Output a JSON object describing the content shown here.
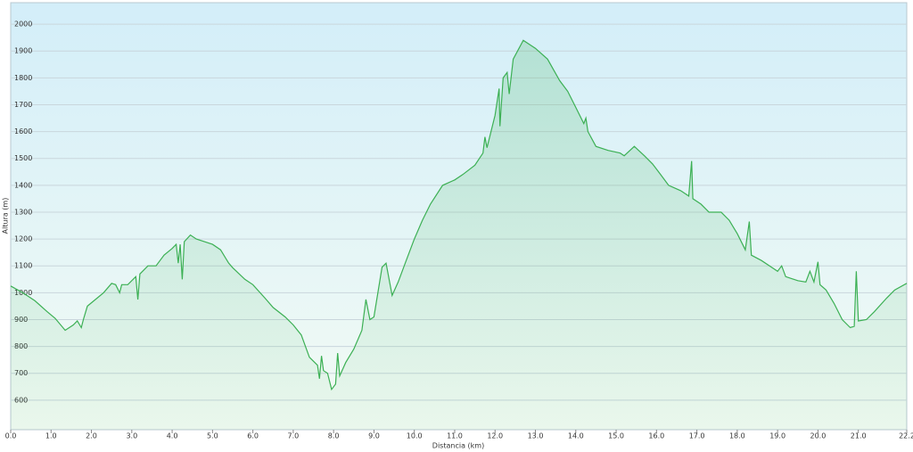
{
  "chart_data": {
    "type": "area",
    "x_label": "Distancia  (km)",
    "y_label": "Altura (m)",
    "color": "#3cb054",
    "grid": true,
    "x": [
      0,
      0.3,
      0.6,
      0.9,
      1.1,
      1.35,
      1.55,
      1.65,
      1.75,
      1.8,
      1.9,
      2.1,
      2.3,
      2.5,
      2.6,
      2.7,
      2.75,
      2.9,
      3.1,
      3.15,
      3.2,
      3.4,
      3.6,
      3.8,
      4.0,
      4.1,
      4.15,
      4.2,
      4.25,
      4.3,
      4.45,
      4.6,
      4.8,
      5.0,
      5.2,
      5.4,
      5.5,
      5.8,
      6.0,
      6.3,
      6.5,
      6.8,
      7.0,
      7.2,
      7.4,
      7.6,
      7.65,
      7.7,
      7.75,
      7.85,
      7.95,
      8.05,
      8.1,
      8.15,
      8.3,
      8.5,
      8.7,
      8.8,
      8.9,
      9.0,
      9.2,
      9.3,
      9.45,
      9.6,
      9.8,
      10.0,
      10.2,
      10.4,
      10.7,
      11.0,
      11.2,
      11.5,
      11.7,
      11.75,
      11.8,
      12.0,
      12.1,
      12.12,
      12.2,
      12.3,
      12.35,
      12.45,
      12.7,
      13.0,
      13.3,
      13.6,
      13.8,
      14.0,
      14.2,
      14.25,
      14.3,
      14.5,
      14.8,
      15.1,
      15.2,
      15.45,
      15.7,
      15.9,
      16.1,
      16.3,
      16.6,
      16.8,
      16.87,
      16.9,
      17.1,
      17.3,
      17.6,
      17.8,
      18.0,
      18.2,
      18.3,
      18.35,
      18.6,
      18.9,
      19.0,
      19.1,
      19.2,
      19.5,
      19.7,
      19.8,
      19.9,
      20.0,
      20.05,
      20.2,
      20.4,
      20.6,
      20.8,
      20.9,
      20.95,
      21.0,
      21.2,
      21.4,
      21.7,
      21.9,
      22.2
    ],
    "values": [
      1025,
      1000,
      970,
      930,
      905,
      860,
      880,
      895,
      870,
      900,
      950,
      975,
      1000,
      1035,
      1030,
      1000,
      1030,
      1030,
      1060,
      975,
      1070,
      1100,
      1100,
      1140,
      1165,
      1180,
      1110,
      1180,
      1050,
      1190,
      1215,
      1200,
      1190,
      1180,
      1160,
      1110,
      1093,
      1050,
      1030,
      980,
      945,
      910,
      880,
      843,
      760,
      730,
      680,
      765,
      710,
      700,
      640,
      660,
      775,
      690,
      740,
      790,
      860,
      975,
      900,
      910,
      1095,
      1110,
      990,
      1040,
      1120,
      1200,
      1270,
      1330,
      1400,
      1420,
      1440,
      1475,
      1520,
      1580,
      1540,
      1660,
      1760,
      1620,
      1800,
      1820,
      1740,
      1870,
      1940,
      1910,
      1870,
      1790,
      1750,
      1690,
      1630,
      1650,
      1600,
      1545,
      1530,
      1520,
      1510,
      1545,
      1510,
      1480,
      1440,
      1400,
      1380,
      1360,
      1490,
      1350,
      1330,
      1300,
      1300,
      1270,
      1220,
      1160,
      1265,
      1140,
      1120,
      1090,
      1080,
      1100,
      1060,
      1045,
      1040,
      1080,
      1040,
      1115,
      1030,
      1010,
      960,
      900,
      870,
      875,
      1080,
      895,
      900,
      930,
      980,
      1010,
      1035
    ],
    "xlim": [
      0,
      22.2
    ],
    "xticks": [
      {
        "value": 0,
        "label": "0.0"
      },
      {
        "value": 1,
        "label": "1.0"
      },
      {
        "value": 2,
        "label": "2.0"
      },
      {
        "value": 3,
        "label": "3.0"
      },
      {
        "value": 4,
        "label": "4.0"
      },
      {
        "value": 5,
        "label": "5.0"
      },
      {
        "value": 6,
        "label": "6.0"
      },
      {
        "value": 7,
        "label": "7.0"
      },
      {
        "value": 8,
        "label": "8.0"
      },
      {
        "value": 9,
        "label": "9.0"
      },
      {
        "value": 10,
        "label": "10.0"
      },
      {
        "value": 11,
        "label": "11.0"
      },
      {
        "value": 12,
        "label": "12.0"
      },
      {
        "value": 13,
        "label": "13.0"
      },
      {
        "value": 14,
        "label": "14.0"
      },
      {
        "value": 15,
        "label": "15.0"
      },
      {
        "value": 16,
        "label": "16.0"
      },
      {
        "value": 17,
        "label": "17.0"
      },
      {
        "value": 18,
        "label": "18.0"
      },
      {
        "value": 19,
        "label": "19.0"
      },
      {
        "value": 20,
        "label": "20.0"
      },
      {
        "value": 21,
        "label": "21.0"
      },
      22.2
    ],
    "ylim": [
      490,
      2080
    ],
    "yticks": [
      600,
      700,
      800,
      900,
      1000,
      1100,
      1200,
      1300,
      1400,
      1500,
      1600,
      1700,
      1800,
      1900,
      2000
    ]
  }
}
